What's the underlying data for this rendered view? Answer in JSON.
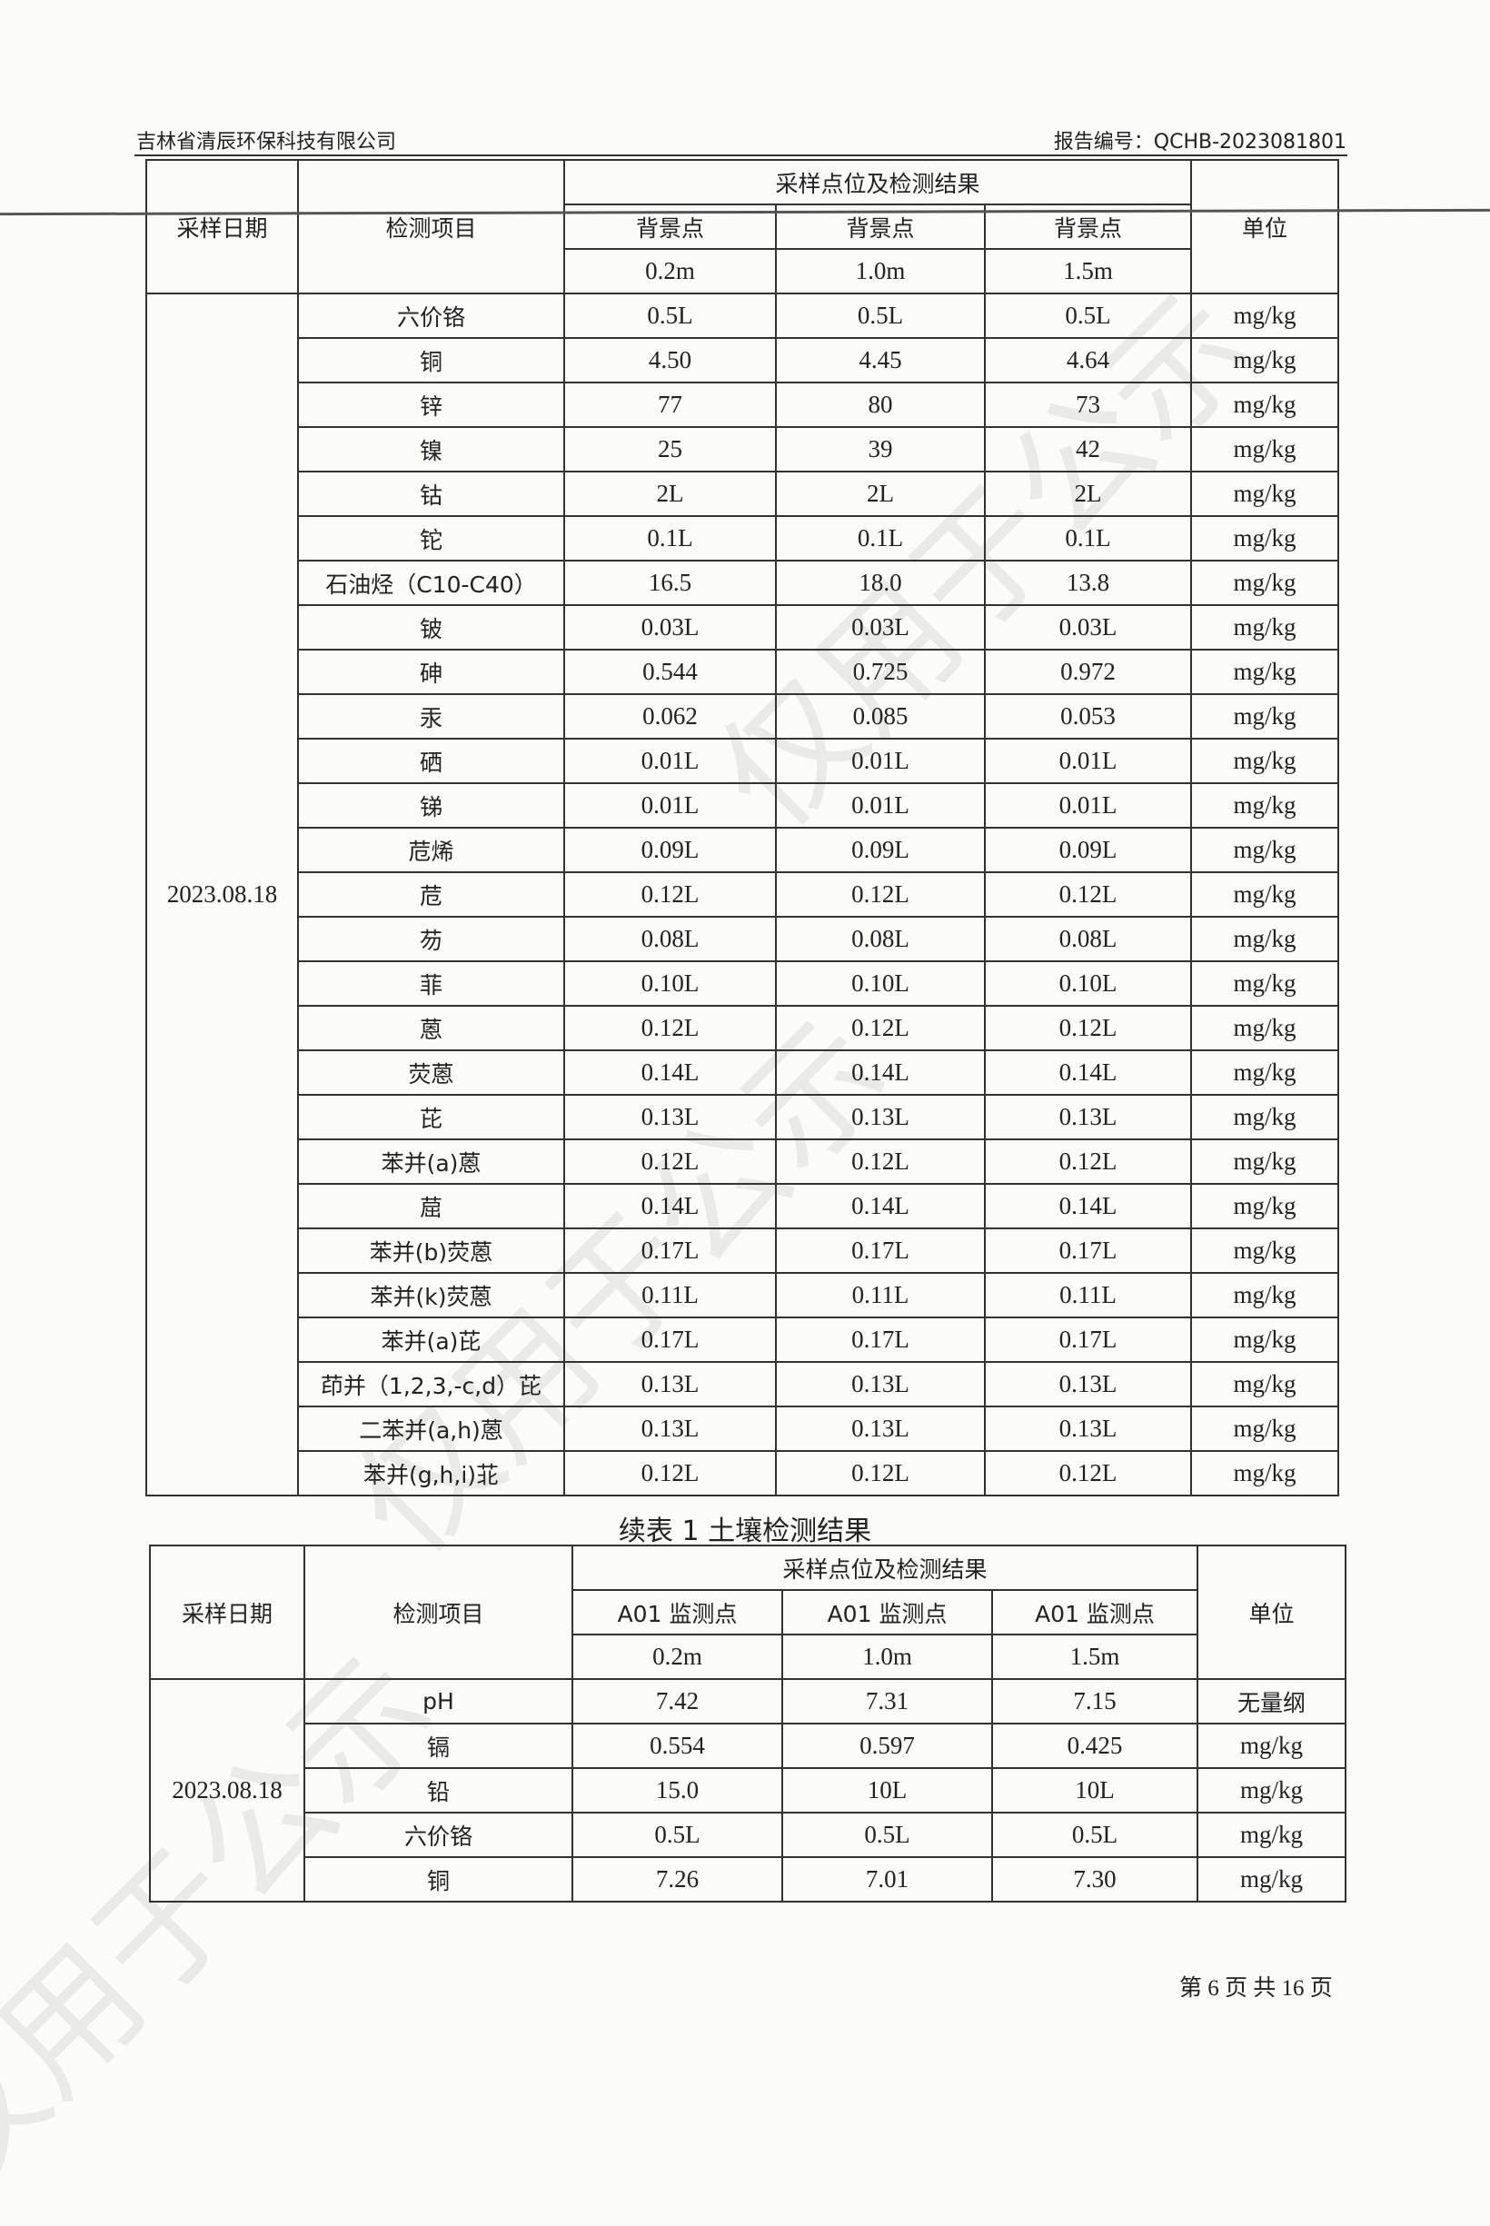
{
  "header": {
    "company": "吉林省清辰环保科技有限公司",
    "report_no": "报告编号：QCHB-2023081801"
  },
  "table1": {
    "col_date": "采样日期",
    "col_item": "检测项目",
    "col_group": "采样点位及检测结果",
    "col_unit": "单位",
    "points": [
      "背景点",
      "背景点",
      "背景点"
    ],
    "depths": [
      "0.2m",
      "1.0m",
      "1.5m"
    ],
    "date": "2023.08.18",
    "rows": [
      {
        "item": "六价铬",
        "v": [
          "0.5L",
          "0.5L",
          "0.5L"
        ],
        "unit": "mg/kg"
      },
      {
        "item": "铜",
        "v": [
          "4.50",
          "4.45",
          "4.64"
        ],
        "unit": "mg/kg"
      },
      {
        "item": "锌",
        "v": [
          "77",
          "80",
          "73"
        ],
        "unit": "mg/kg"
      },
      {
        "item": "镍",
        "v": [
          "25",
          "39",
          "42"
        ],
        "unit": "mg/kg"
      },
      {
        "item": "钴",
        "v": [
          "2L",
          "2L",
          "2L"
        ],
        "unit": "mg/kg"
      },
      {
        "item": "铊",
        "v": [
          "0.1L",
          "0.1L",
          "0.1L"
        ],
        "unit": "mg/kg"
      },
      {
        "item": "石油烃（C10-C40）",
        "v": [
          "16.5",
          "18.0",
          "13.8"
        ],
        "unit": "mg/kg"
      },
      {
        "item": "铍",
        "v": [
          "0.03L",
          "0.03L",
          "0.03L"
        ],
        "unit": "mg/kg"
      },
      {
        "item": "砷",
        "v": [
          "0.544",
          "0.725",
          "0.972"
        ],
        "unit": "mg/kg"
      },
      {
        "item": "汞",
        "v": [
          "0.062",
          "0.085",
          "0.053"
        ],
        "unit": "mg/kg"
      },
      {
        "item": "硒",
        "v": [
          "0.01L",
          "0.01L",
          "0.01L"
        ],
        "unit": "mg/kg"
      },
      {
        "item": "锑",
        "v": [
          "0.01L",
          "0.01L",
          "0.01L"
        ],
        "unit": "mg/kg"
      },
      {
        "item": "苊烯",
        "v": [
          "0.09L",
          "0.09L",
          "0.09L"
        ],
        "unit": "mg/kg"
      },
      {
        "item": "苊",
        "v": [
          "0.12L",
          "0.12L",
          "0.12L"
        ],
        "unit": "mg/kg"
      },
      {
        "item": "芴",
        "v": [
          "0.08L",
          "0.08L",
          "0.08L"
        ],
        "unit": "mg/kg"
      },
      {
        "item": "菲",
        "v": [
          "0.10L",
          "0.10L",
          "0.10L"
        ],
        "unit": "mg/kg"
      },
      {
        "item": "蒽",
        "v": [
          "0.12L",
          "0.12L",
          "0.12L"
        ],
        "unit": "mg/kg"
      },
      {
        "item": "荧蒽",
        "v": [
          "0.14L",
          "0.14L",
          "0.14L"
        ],
        "unit": "mg/kg"
      },
      {
        "item": "芘",
        "v": [
          "0.13L",
          "0.13L",
          "0.13L"
        ],
        "unit": "mg/kg"
      },
      {
        "item": "苯并(a)蒽",
        "v": [
          "0.12L",
          "0.12L",
          "0.12L"
        ],
        "unit": "mg/kg"
      },
      {
        "item": "䓛",
        "v": [
          "0.14L",
          "0.14L",
          "0.14L"
        ],
        "unit": "mg/kg"
      },
      {
        "item": "苯并(b)荧蒽",
        "v": [
          "0.17L",
          "0.17L",
          "0.17L"
        ],
        "unit": "mg/kg"
      },
      {
        "item": "苯并(k)荧蒽",
        "v": [
          "0.11L",
          "0.11L",
          "0.11L"
        ],
        "unit": "mg/kg"
      },
      {
        "item": "苯并(a)芘",
        "v": [
          "0.17L",
          "0.17L",
          "0.17L"
        ],
        "unit": "mg/kg"
      },
      {
        "item": "茚并（1,2,3,-c,d）芘",
        "v": [
          "0.13L",
          "0.13L",
          "0.13L"
        ],
        "unit": "mg/kg"
      },
      {
        "item": "二苯并(a,h)蒽",
        "v": [
          "0.13L",
          "0.13L",
          "0.13L"
        ],
        "unit": "mg/kg"
      },
      {
        "item": "苯并(g,h,i)苝",
        "v": [
          "0.12L",
          "0.12L",
          "0.12L"
        ],
        "unit": "mg/kg"
      }
    ]
  },
  "table2": {
    "title": "续表 1 土壤检测结果",
    "col_date": "采样日期",
    "col_item": "检测项目",
    "col_group": "采样点位及检测结果",
    "col_unit": "单位",
    "points": [
      "A01 监测点",
      "A01 监测点",
      "A01 监测点"
    ],
    "depths": [
      "0.2m",
      "1.0m",
      "1.5m"
    ],
    "date": "2023.08.18",
    "rows": [
      {
        "item": "pH",
        "v": [
          "7.42",
          "7.31",
          "7.15"
        ],
        "unit": "无量纲"
      },
      {
        "item": "镉",
        "v": [
          "0.554",
          "0.597",
          "0.425"
        ],
        "unit": "mg/kg"
      },
      {
        "item": "铅",
        "v": [
          "15.0",
          "10L",
          "10L"
        ],
        "unit": "mg/kg"
      },
      {
        "item": "六价铬",
        "v": [
          "0.5L",
          "0.5L",
          "0.5L"
        ],
        "unit": "mg/kg"
      },
      {
        "item": "铜",
        "v": [
          "7.26",
          "7.01",
          "7.30"
        ],
        "unit": "mg/kg"
      }
    ]
  },
  "footer": {
    "page": "第 6 页 共 16 页"
  },
  "watermark": "仅用于公示"
}
